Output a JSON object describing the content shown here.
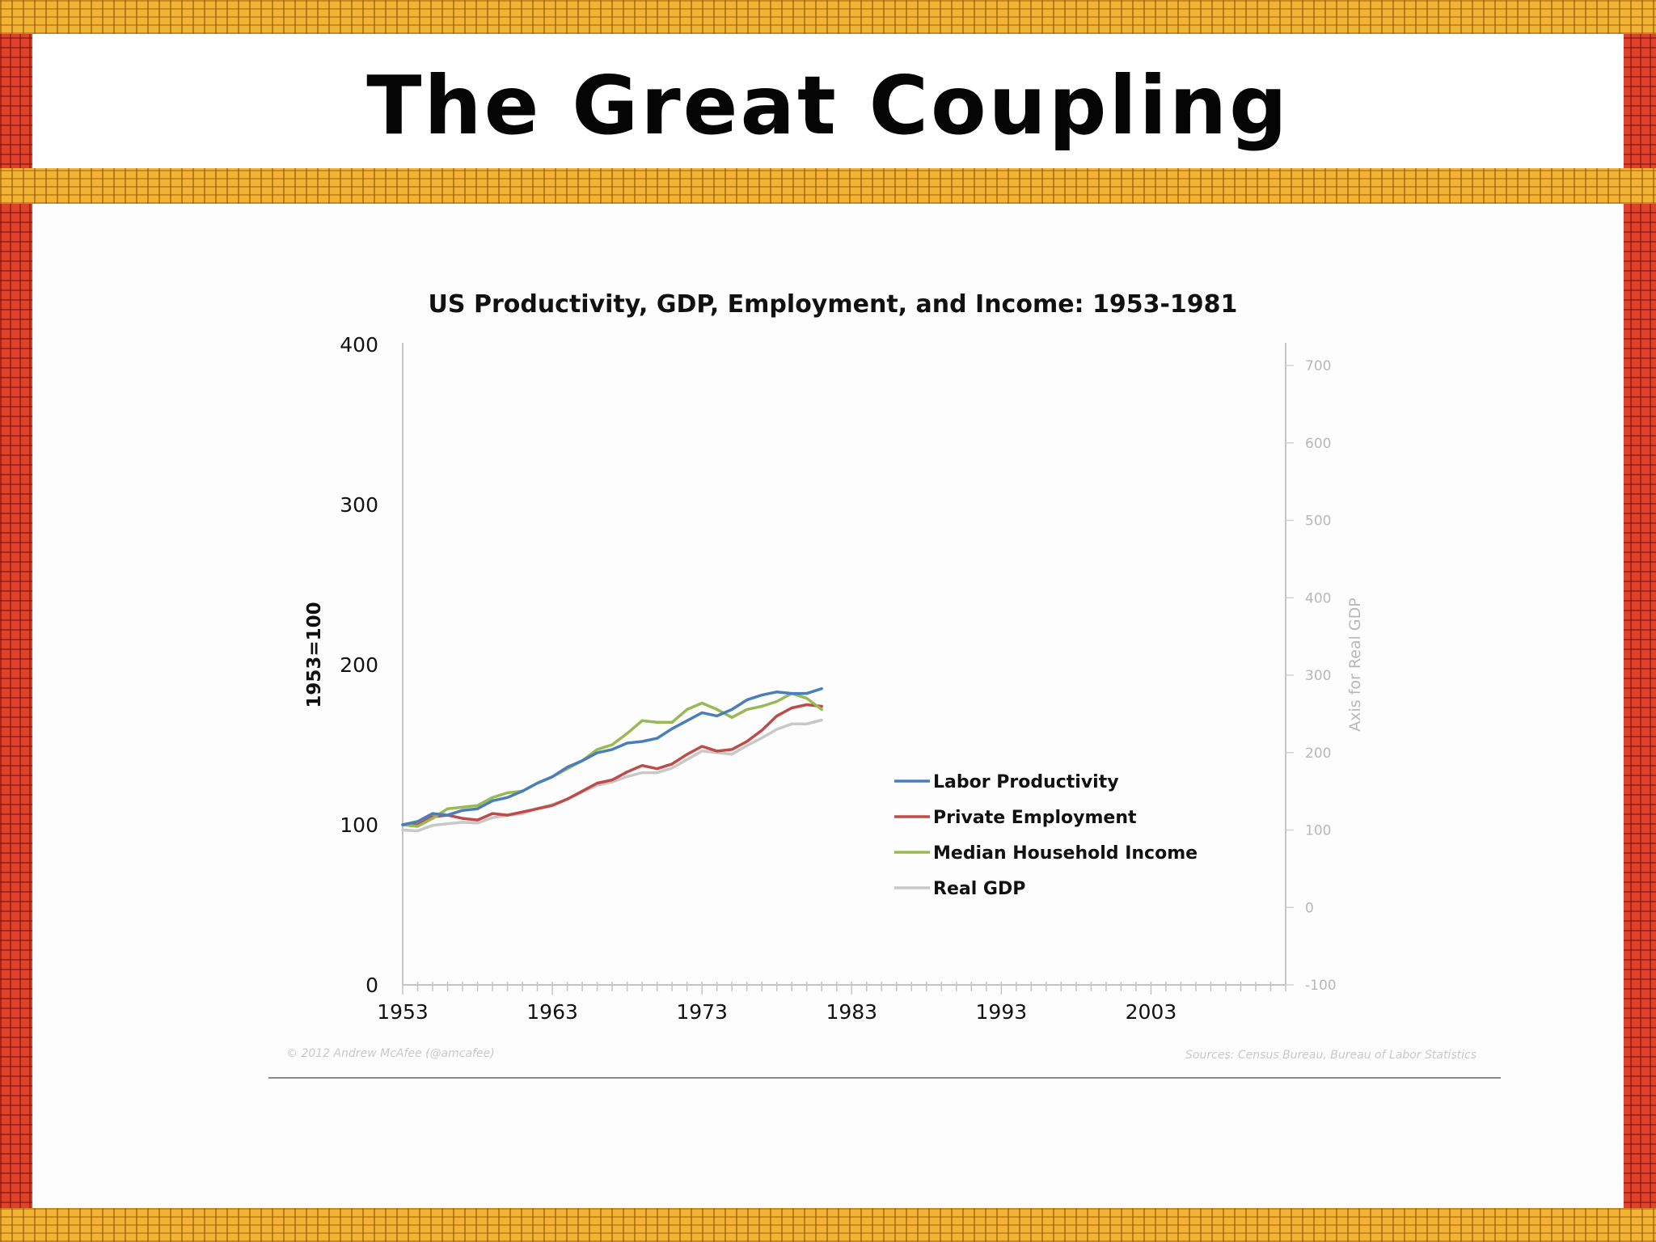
{
  "slide": {
    "title": "The Great Coupling"
  },
  "chart_data": {
    "type": "line",
    "title": "US Productivity, GDP, Employment, and Income: 1953-1981",
    "ylabel": "1953=100",
    "ylabel_right": "Axis for Real GDP",
    "ylim": [
      0,
      400
    ],
    "ylim_right": [
      -100,
      700
    ],
    "xlim": [
      1953,
      2012
    ],
    "y_ticks": [
      "0",
      "100",
      "200",
      "300",
      "400"
    ],
    "y_ticks_right": [
      "-100",
      "0",
      "100",
      "200",
      "300",
      "400",
      "500",
      "600",
      "700"
    ],
    "x_ticks": [
      "1953",
      "1963",
      "1973",
      "1983",
      "1993",
      "2003"
    ],
    "legend_position": "center-right",
    "grid": false,
    "x": [
      1953,
      1954,
      1955,
      1956,
      1957,
      1958,
      1959,
      1960,
      1961,
      1962,
      1963,
      1964,
      1965,
      1966,
      1967,
      1968,
      1969,
      1970,
      1971,
      1972,
      1973,
      1974,
      1975,
      1976,
      1977,
      1978,
      1979,
      1980,
      1981
    ],
    "series": [
      {
        "name": "Labor Productivity",
        "color": "#4a7ebb",
        "axis": "left",
        "values": [
          100,
          102,
          107,
          106,
          109,
          110,
          115,
          117,
          121,
          126,
          130,
          136,
          140,
          145,
          147,
          151,
          152,
          154,
          160,
          165,
          170,
          168,
          172,
          178,
          181,
          183,
          182,
          182,
          185
        ]
      },
      {
        "name": "Private Employment",
        "color": "#be4b48",
        "axis": "left",
        "values": [
          100,
          100,
          105,
          106,
          104,
          103,
          107,
          106,
          108,
          110,
          112,
          116,
          121,
          126,
          128,
          133,
          137,
          135,
          138,
          144,
          149,
          146,
          147,
          152,
          159,
          168,
          173,
          175,
          174
        ]
      },
      {
        "name": "Median Household Income",
        "color": "#98b954",
        "axis": "left",
        "values": [
          100,
          99,
          104,
          110,
          111,
          112,
          117,
          120,
          121,
          126,
          130,
          135,
          140,
          147,
          150,
          157,
          165,
          164,
          164,
          172,
          176,
          172,
          167,
          172,
          174,
          177,
          182,
          179,
          172
        ]
      },
      {
        "name": "Real GDP",
        "color": "#c8c8c8",
        "axis": "right",
        "values": [
          100,
          99,
          106,
          108,
          110,
          109,
          116,
          119,
          121,
          128,
          133,
          140,
          149,
          158,
          162,
          169,
          174,
          174,
          180,
          191,
          202,
          200,
          198,
          209,
          219,
          230,
          237,
          237,
          242
        ]
      }
    ]
  },
  "footer": {
    "copyright": "© 2012 Andrew McAfee  (@amcafee)",
    "sources": "Sources: Census Bureau, Bureau of Labor Statistics"
  }
}
